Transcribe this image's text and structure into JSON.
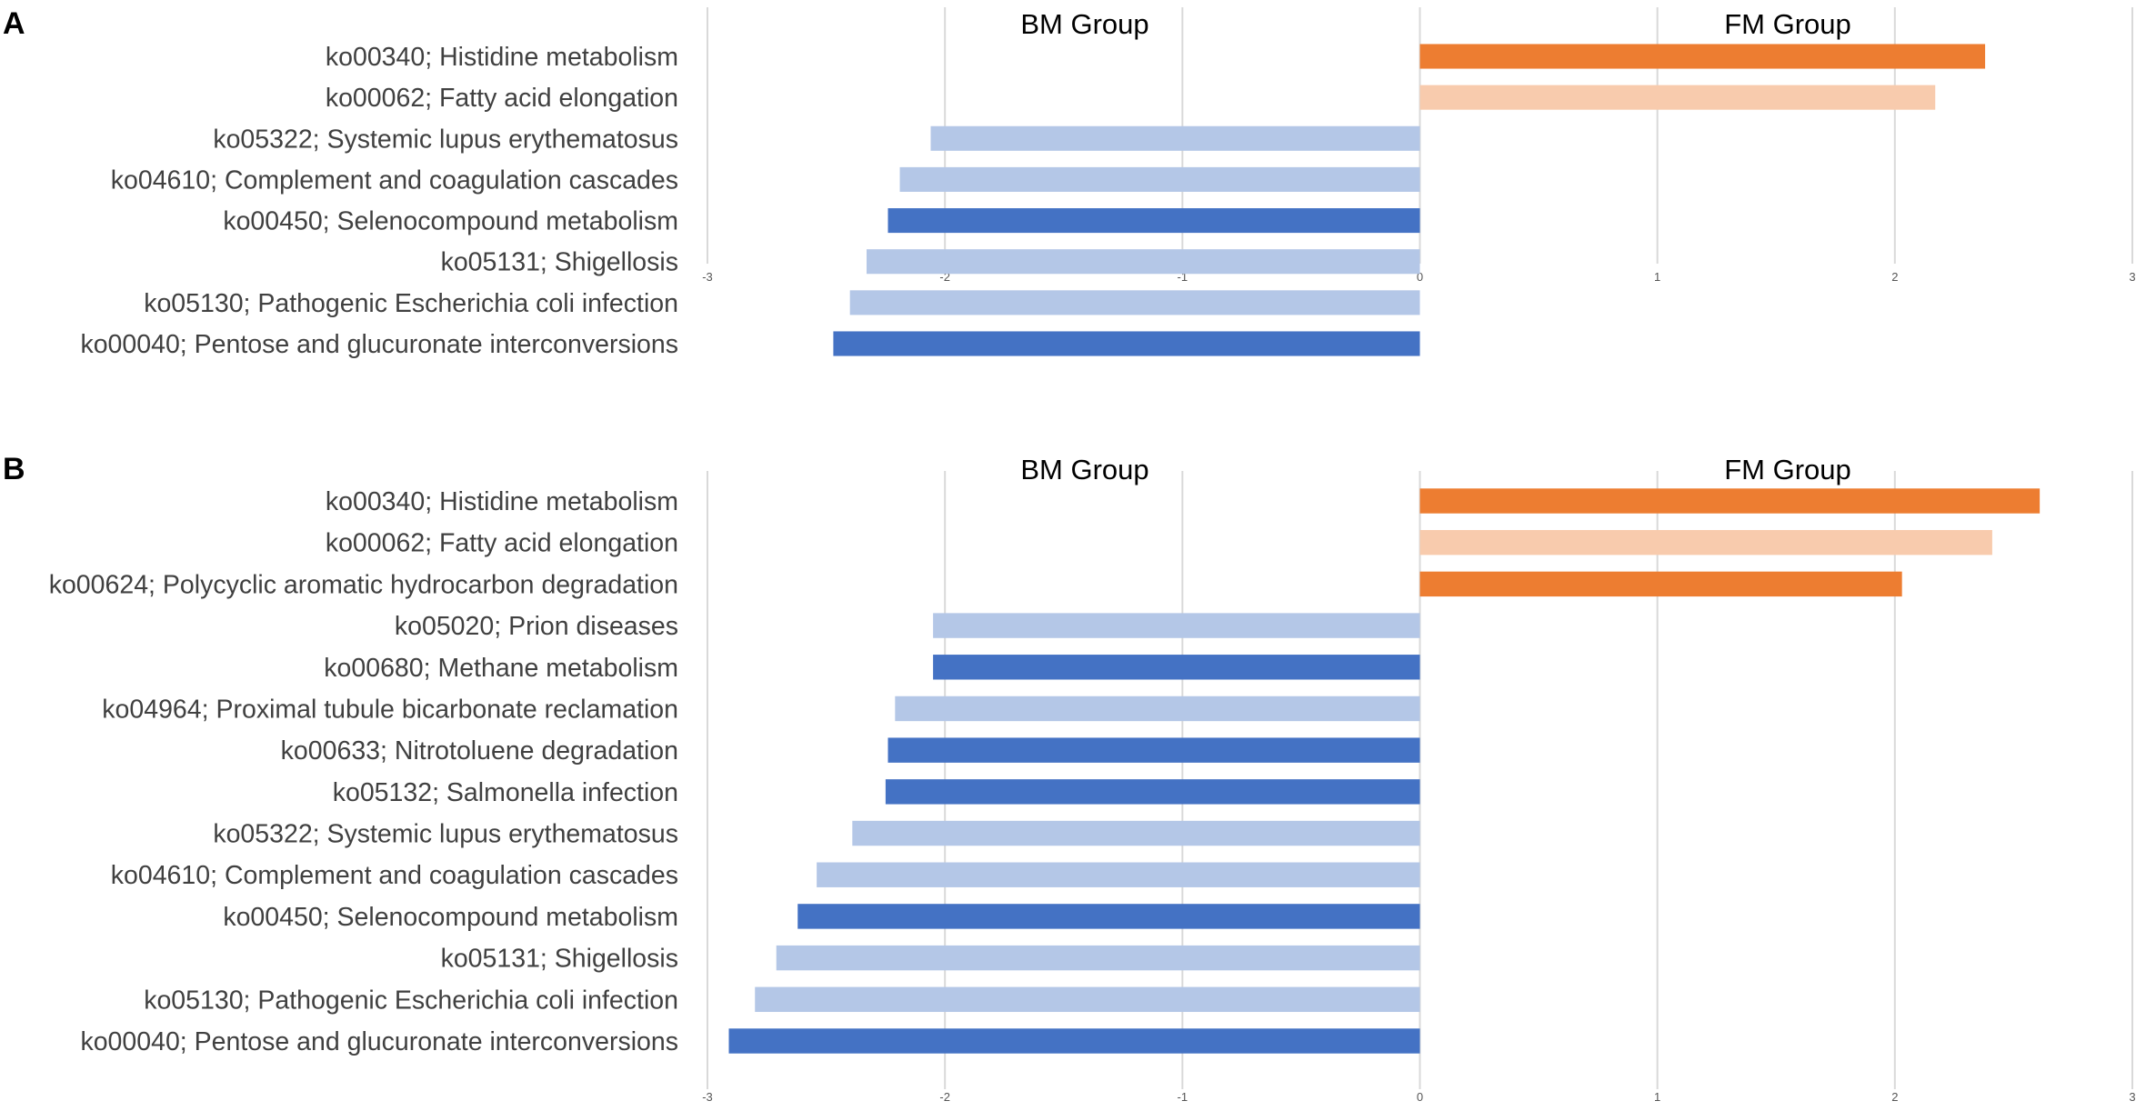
{
  "chart_data": [
    {
      "panel": "A",
      "type": "bar",
      "orientation": "horizontal",
      "xlim": [
        -3,
        3
      ],
      "xticks": [
        "-3",
        "-2",
        "-1",
        "0",
        "1",
        "2",
        "3"
      ],
      "grid": true,
      "group_labels": {
        "left": "BM Group",
        "right": "FM Group"
      },
      "categories": [
        "ko00340; Histidine metabolism",
        "ko00062; Fatty acid elongation",
        "ko05322; Systemic lupus erythematosus",
        "ko04610; Complement and coagulation cascades",
        "ko00450; Selenocompound metabolism",
        "ko05131; Shigellosis",
        "ko05130; Pathogenic Escherichia coli infection",
        "ko00040; Pentose and glucuronate interconversions"
      ],
      "values": [
        2.38,
        2.17,
        -2.06,
        -2.19,
        -2.24,
        -2.33,
        -2.4,
        -2.47
      ],
      "colors": [
        "#ed7d31",
        "#f8cbad",
        "#b4c7e7",
        "#b4c7e7",
        "#4472c4",
        "#b4c7e7",
        "#b4c7e7",
        "#4472c4"
      ]
    },
    {
      "panel": "B",
      "type": "bar",
      "orientation": "horizontal",
      "xlim": [
        -3,
        3
      ],
      "xticks": [
        "-3",
        "-2",
        "-1",
        "0",
        "1",
        "2",
        "3"
      ],
      "grid": true,
      "group_labels": {
        "left": "BM Group",
        "right": "FM Group"
      },
      "categories": [
        "ko00340; Histidine metabolism",
        "ko00062; Fatty acid elongation",
        "ko00624; Polycyclic aromatic hydrocarbon degradation",
        "ko05020; Prion diseases",
        "ko00680; Methane metabolism",
        "ko04964; Proximal tubule bicarbonate reclamation",
        "ko00633; Nitrotoluene degradation",
        "ko05132; Salmonella infection",
        "ko05322; Systemic lupus erythematosus",
        "ko04610; Complement and coagulation cascades",
        "ko00450; Selenocompound metabolism",
        "ko05131; Shigellosis",
        "ko05130; Pathogenic Escherichia coli infection",
        "ko00040; Pentose and glucuronate interconversions"
      ],
      "values": [
        2.61,
        2.41,
        2.03,
        -2.05,
        -2.05,
        -2.21,
        -2.24,
        -2.25,
        -2.39,
        -2.54,
        -2.62,
        -2.71,
        -2.8,
        -2.91
      ],
      "colors": [
        "#ed7d31",
        "#f8cbad",
        "#ed7d31",
        "#b4c7e7",
        "#4472c4",
        "#b4c7e7",
        "#4472c4",
        "#4472c4",
        "#b4c7e7",
        "#b4c7e7",
        "#4472c4",
        "#b4c7e7",
        "#b4c7e7",
        "#4472c4"
      ]
    }
  ]
}
